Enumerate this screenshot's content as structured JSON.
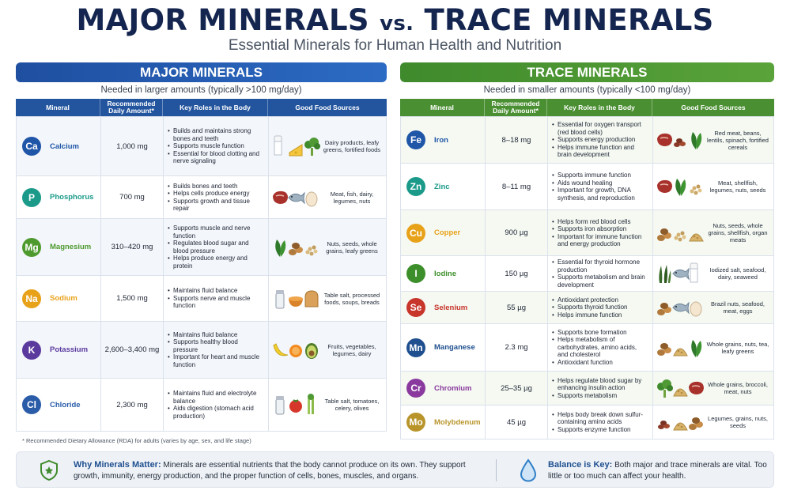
{
  "header": {
    "title_left": "MAJOR MINERALS",
    "title_vs": "vs.",
    "title_right": "TRACE MINERALS",
    "subtitle": "Essential Minerals for Human Health and Nutrition"
  },
  "major": {
    "banner": "MAJOR MINERALS",
    "note": "Needed in larger amounts (typically >100 mg/day)",
    "columns": [
      "Mineral",
      "Recommended Daily Amount*",
      "Key Roles in the Body",
      "Good Food Sources"
    ],
    "rows": [
      {
        "symbol": "Ca",
        "name": "Calcium",
        "color": "#1f56a8",
        "amount": "1,000 mg",
        "roles": [
          "Builds and maintains strong bones and teeth",
          "Supports muscle function",
          "Essential for blood clotting and nerve signaling"
        ],
        "foods": "Dairy products, leafy greens, fortified foods",
        "icons": [
          "milk",
          "cheese",
          "broccoli"
        ]
      },
      {
        "symbol": "P",
        "name": "Phosphorus",
        "color": "#1b9a8a",
        "amount": "700 mg",
        "roles": [
          "Builds bones and teeth",
          "Helps cells produce energy",
          "Supports growth and tissue repair"
        ],
        "foods": "Meat, fish, dairy, legumes, nuts",
        "icons": [
          "meat",
          "fish",
          "egg"
        ]
      },
      {
        "symbol": "Mg",
        "name": "Magnesium",
        "color": "#4e9a2e",
        "amount": "310–420 mg",
        "roles": [
          "Supports muscle and nerve function",
          "Regulates blood sugar and blood pressure",
          "Helps produce energy and protein"
        ],
        "foods": "Nuts, seeds, whole grains, leafy greens",
        "icons": [
          "spinach",
          "nuts",
          "seeds"
        ]
      },
      {
        "symbol": "Na",
        "name": "Sodium",
        "color": "#e8a21a",
        "amount": "1,500 mg",
        "roles": [
          "Maintains fluid balance",
          "Supports nerve and muscle function"
        ],
        "foods": "Table salt, processed foods, soups, breads",
        "icons": [
          "salt",
          "soup",
          "bread"
        ]
      },
      {
        "symbol": "K",
        "name": "Potassium",
        "color": "#5b3a9e",
        "amount": "2,600–3,400 mg",
        "roles": [
          "Maintains fluid balance",
          "Supports healthy blood pressure",
          "Important for heart and muscle function"
        ],
        "foods": "Fruits, vegetables, legumes, dairy",
        "icons": [
          "banana",
          "orange",
          "avocado"
        ]
      },
      {
        "symbol": "Cl",
        "name": "Chloride",
        "color": "#2a5ca8",
        "amount": "2,300 mg",
        "roles": [
          "Maintains fluid and electrolyte balance",
          "Aids digestion (stomach acid production)"
        ],
        "foods": "Table salt, tomatoes, celery, olives",
        "icons": [
          "salt",
          "tomato",
          "celery"
        ]
      }
    ]
  },
  "trace": {
    "banner": "TRACE MINERALS",
    "note": "Needed in smaller amounts (typically <100 mg/day)",
    "columns": [
      "Mineral",
      "Recommended Daily Amount*",
      "Key Roles in the Body",
      "Good Food Sources"
    ],
    "rows": [
      {
        "symbol": "Fe",
        "name": "Iron",
        "color": "#1f56a8",
        "amount": "8–18 mg",
        "roles": [
          "Essential for oxygen transport (red blood cells)",
          "Supports energy production",
          "Helps immune function and brain development"
        ],
        "foods": "Red meat, beans, lentils, spinach, fortified cereals",
        "icons": [
          "meat",
          "beans",
          "spinach"
        ]
      },
      {
        "symbol": "Zn",
        "name": "Zinc",
        "color": "#1b9a8a",
        "amount": "8–11 mg",
        "roles": [
          "Supports immune function",
          "Aids wound healing",
          "Important for growth, DNA synthesis, and reproduction"
        ],
        "foods": "Meat, shellfish, legumes, nuts, seeds",
        "icons": [
          "meat",
          "spinach",
          "seeds"
        ]
      },
      {
        "symbol": "Cu",
        "name": "Copper",
        "color": "#e8a21a",
        "amount": "900 µg",
        "roles": [
          "Helps form red blood cells",
          "Supports iron absorption",
          "Important for immune function and energy production"
        ],
        "foods": "Nuts, seeds, whole grains, shellfish, organ meats",
        "icons": [
          "nuts",
          "seeds",
          "grains"
        ]
      },
      {
        "symbol": "I",
        "name": "Iodine",
        "color": "#3d8f2b",
        "amount": "150 µg",
        "roles": [
          "Essential for thyroid hormone production",
          "Supports metabolism and brain development"
        ],
        "foods": "Iodized salt, seafood, dairy, seaweed",
        "icons": [
          "seaweed",
          "fish",
          "milk"
        ]
      },
      {
        "symbol": "Se",
        "name": "Selenium",
        "color": "#c8352b",
        "amount": "55 µg",
        "roles": [
          "Antioxidant protection",
          "Supports thyroid function",
          "Helps immune function"
        ],
        "foods": "Brazil nuts, seafood, meat, eggs",
        "icons": [
          "nuts",
          "fish",
          "egg"
        ]
      },
      {
        "symbol": "Mn",
        "name": "Manganese",
        "color": "#1f4f8f",
        "amount": "2.3 mg",
        "roles": [
          "Supports bone formation",
          "Helps metabolism of carbohydrates, amino acids, and cholesterol",
          "Antioxidant function"
        ],
        "foods": "Whole grains, nuts, tea, leafy greens",
        "icons": [
          "nuts",
          "grains",
          "spinach"
        ]
      },
      {
        "symbol": "Cr",
        "name": "Chromium",
        "color": "#8a3a9e",
        "amount": "25–35 µg",
        "roles": [
          "Helps regulate blood sugar by enhancing insulin action",
          "Supports metabolism"
        ],
        "foods": "Whole grains, broccoli, meat, nuts",
        "icons": [
          "broccoli",
          "grains",
          "meat"
        ]
      },
      {
        "symbol": "Mo",
        "name": "Molybdenum",
        "color": "#b8942a",
        "amount": "45 µg",
        "roles": [
          "Helps body break down sulfur-containing amino acids",
          "Supports enzyme function"
        ],
        "foods": "Legumes, grains, nuts, seeds",
        "icons": [
          "beans",
          "grains",
          "nuts"
        ]
      }
    ]
  },
  "footnote": "* Recommended Dietary Allowance (RDA) for adults (varies by age, sex, and life stage)",
  "bottom": {
    "why_title": "Why Minerals Matter:",
    "why_text": "Minerals are essential nutrients that the body cannot produce on its own. They support growth, immunity, energy production, and the proper function of cells, bones, muscles, and organs.",
    "balance_title": "Balance is Key:",
    "balance_text": "Both major and trace minerals are vital. Too little or too much can affect your health."
  }
}
